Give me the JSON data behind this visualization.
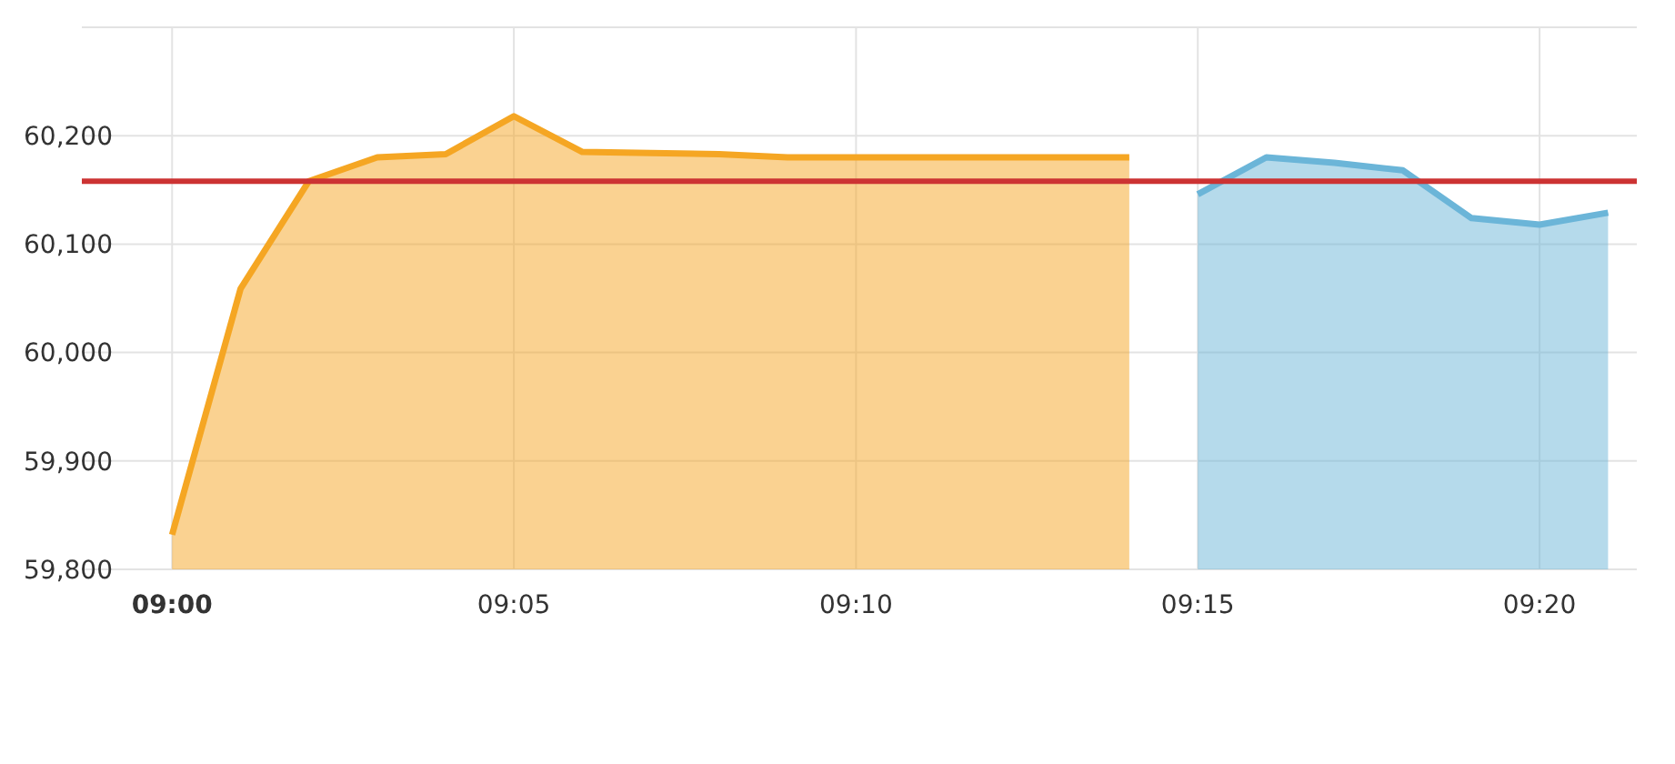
{
  "chart_data": {
    "type": "area",
    "xlim": [
      8.978,
      9.357
    ],
    "ylim": [
      59800,
      60300
    ],
    "xticks": [
      {
        "value": 9,
        "label": "09:00"
      },
      {
        "value": 9.0833,
        "label": "09:05"
      },
      {
        "value": 9.1667,
        "label": "09:10"
      },
      {
        "value": 9.25,
        "label": "09:15"
      },
      {
        "value": 9.3333,
        "label": "09:20"
      }
    ],
    "yticks": [
      {
        "value": 59800,
        "label": "59,800"
      },
      {
        "value": 59900,
        "label": "59,900"
      },
      {
        "value": 60000,
        "label": "60,000"
      },
      {
        "value": 60100,
        "label": "60,100"
      },
      {
        "value": 60200,
        "label": "60,200"
      },
      {
        "value": 60300,
        "label": null
      }
    ],
    "grid": true,
    "series": [
      {
        "color": "#f5a623",
        "x": [
          9,
          9.0167,
          9.0333,
          9.05,
          9.0667,
          9.0833,
          9.1,
          9.1167,
          9.1333,
          9.15,
          9.1667,
          9.1833,
          9.2,
          9.2167,
          9.2333
        ],
        "values": [
          59832,
          60059,
          60158,
          60180,
          60183,
          60218,
          60185,
          60184,
          60183,
          60180,
          60180,
          60180,
          60180,
          60180,
          60180
        ]
      },
      {
        "color": "#6bb5d8",
        "x": [
          9.25,
          9.2667,
          9.2833,
          9.3,
          9.3167,
          9.3333,
          9.35
        ],
        "values": [
          60146,
          60180,
          60175,
          60168,
          60124,
          60118,
          60129
        ]
      }
    ],
    "ref_lines": [
      {
        "axis": "y",
        "value": 60158,
        "color": "#cc3333"
      }
    ]
  }
}
